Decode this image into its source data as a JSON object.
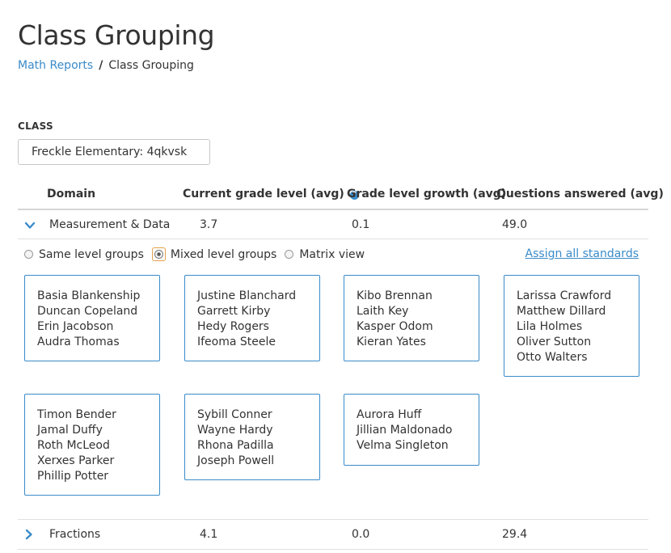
{
  "page": {
    "title": "Class Grouping"
  },
  "breadcrumb": {
    "parent": "Math Reports",
    "separator": "/",
    "current": "Class Grouping"
  },
  "class_field": {
    "label": "CLASS",
    "value": "Freckle Elementary: 4qkvsk"
  },
  "table": {
    "headers": {
      "domain": "Domain",
      "grade_level": "Current grade level (avg)",
      "growth": "Grade level growth (avg)",
      "questions": "Questions answered (avg)"
    },
    "rows": [
      {
        "domain": "Measurement & Data",
        "grade_level": "3.7",
        "growth": "0.1",
        "questions": "49.0",
        "expanded": true
      },
      {
        "domain": "Fractions",
        "grade_level": "4.1",
        "growth": "0.0",
        "questions": "29.4",
        "expanded": false
      }
    ]
  },
  "view_options": {
    "options": [
      "Same level groups",
      "Mixed level groups",
      "Matrix view"
    ],
    "selected": "Mixed level groups",
    "assign_link": "Assign all standards"
  },
  "groups": [
    {
      "students": [
        "Basia Blankenship",
        "Duncan Copeland",
        "Erin Jacobson",
        "Audra Thomas"
      ]
    },
    {
      "students": [
        "Justine Blanchard",
        "Garrett Kirby",
        "Hedy Rogers",
        "Ifeoma Steele"
      ]
    },
    {
      "students": [
        "Kibo Brennan",
        "Laith Key",
        "Kasper Odom",
        "Kieran Yates"
      ]
    },
    {
      "students": [
        "Larissa Crawford",
        "Matthew Dillard",
        "Lila Holmes",
        "Oliver Sutton",
        "Otto Walters"
      ]
    },
    {
      "students": [
        "Timon Bender",
        "Jamal Duffy",
        "Roth McLeod",
        "Xerxes Parker",
        "Phillip Potter"
      ]
    },
    {
      "students": [
        "Sybill Conner",
        "Wayne Hardy",
        "Rhona Padilla",
        "Joseph Powell"
      ]
    },
    {
      "students": [
        "Aurora Huff",
        "Jillian Maldonado",
        "Velma Singleton"
      ]
    }
  ],
  "colors": {
    "accent": "#3a8bc9",
    "selected_outline": "#e6a04a",
    "text": "#333333"
  }
}
